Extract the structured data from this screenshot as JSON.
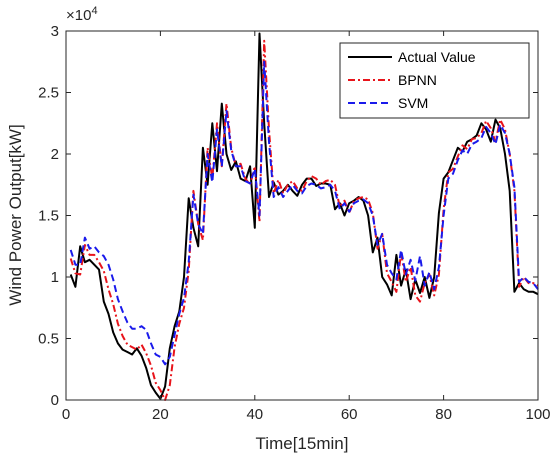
{
  "chart_data": {
    "type": "line",
    "title": "",
    "xlabel": "Time[15min]",
    "ylabel": "Wind Power Output[kW]",
    "y_multiplier_label": "×10",
    "y_multiplier_exponent": "4",
    "xlim": [
      0,
      100
    ],
    "ylim": [
      0,
      30000
    ],
    "x_ticks": [
      0,
      20,
      40,
      60,
      80,
      100
    ],
    "y_ticks": [
      0,
      5000,
      10000,
      15000,
      20000,
      25000,
      30000
    ],
    "y_tick_labels": [
      "0",
      "0.5",
      "1",
      "1.5",
      "2",
      "2.5",
      "3"
    ],
    "grid": false,
    "legend_position": "top-right",
    "series": [
      {
        "name": "Actual Value",
        "color": "#000000",
        "style": "solid",
        "x": [
          1,
          2,
          3,
          4,
          5,
          6,
          7,
          8,
          9,
          10,
          11,
          12,
          13,
          14,
          15,
          16,
          17,
          18,
          19,
          20,
          21,
          22,
          23,
          24,
          25,
          26,
          27,
          28,
          29,
          30,
          31,
          32,
          33,
          34,
          35,
          36,
          37,
          38,
          39,
          40,
          41,
          42,
          43,
          44,
          45,
          46,
          47,
          48,
          49,
          50,
          51,
          52,
          53,
          54,
          55,
          56,
          57,
          58,
          59,
          60,
          61,
          62,
          63,
          64,
          65,
          66,
          67,
          68,
          69,
          70,
          71,
          72,
          73,
          74,
          75,
          76,
          77,
          78,
          79,
          80,
          81,
          82,
          83,
          84,
          85,
          86,
          87,
          88,
          89,
          90,
          91,
          92,
          93,
          94,
          95,
          96,
          97,
          98,
          99,
          100
        ],
        "values": [
          10200,
          9200,
          12500,
          11200,
          11400,
          11000,
          10600,
          8000,
          7000,
          5500,
          4600,
          4100,
          3900,
          3700,
          4200,
          3600,
          2600,
          1200,
          600,
          100,
          1100,
          4200,
          6000,
          7200,
          10000,
          16400,
          14000,
          12500,
          20500,
          17500,
          22500,
          18600,
          24100,
          20000,
          18700,
          19400,
          18000,
          17800,
          19000,
          14000,
          29800,
          22500,
          16500,
          17700,
          16700,
          17000,
          17500,
          17000,
          16600,
          17500,
          18000,
          18000,
          17400,
          17600,
          17600,
          17500,
          15500,
          16000,
          15000,
          16000,
          16200,
          16500,
          16200,
          15000,
          12000,
          13200,
          10000,
          9400,
          8500,
          11800,
          9300,
          10600,
          8200,
          9800,
          8700,
          10000,
          8300,
          10000,
          15200,
          18000,
          18500,
          19500,
          20500,
          20200,
          21000,
          21200,
          21500,
          22500,
          22000,
          21000,
          22800,
          22100,
          20000,
          17000,
          8800,
          9500,
          9000,
          8800,
          8800,
          8600
        ]
      },
      {
        "name": "BPNN",
        "color": "#e8141b",
        "style": "dashdot",
        "x": [
          1,
          2,
          3,
          4,
          5,
          6,
          7,
          8,
          9,
          10,
          11,
          12,
          13,
          14,
          15,
          16,
          17,
          18,
          19,
          20,
          21,
          22,
          23,
          24,
          25,
          26,
          27,
          28,
          29,
          30,
          31,
          32,
          33,
          34,
          35,
          36,
          37,
          38,
          39,
          40,
          41,
          42,
          43,
          44,
          45,
          46,
          47,
          48,
          49,
          50,
          51,
          52,
          53,
          54,
          55,
          56,
          57,
          58,
          59,
          60,
          61,
          62,
          63,
          64,
          65,
          66,
          67,
          68,
          69,
          70,
          71,
          72,
          73,
          74,
          75,
          76,
          77,
          78,
          79,
          80,
          81,
          82,
          83,
          84,
          85,
          86,
          87,
          88,
          89,
          90,
          91,
          92,
          93,
          94,
          95,
          96,
          97,
          98,
          99,
          100
        ],
        "values": [
          11500,
          10300,
          10200,
          12600,
          11800,
          11800,
          11200,
          10500,
          9000,
          7800,
          6200,
          5200,
          4500,
          4300,
          4100,
          4500,
          3800,
          2800,
          1400,
          800,
          0,
          1200,
          4300,
          6200,
          7500,
          10500,
          17000,
          14300,
          13000,
          20500,
          18000,
          22500,
          19000,
          24100,
          20500,
          19000,
          19200,
          18000,
          17500,
          19000,
          14500,
          29200,
          22000,
          16800,
          17900,
          16800,
          17500,
          17800,
          17200,
          17000,
          17800,
          18200,
          18000,
          17500,
          17800,
          17900,
          17500,
          15700,
          16200,
          15200,
          16200,
          16400,
          16500,
          16300,
          15200,
          12300,
          13500,
          10300,
          9600,
          8800,
          12000,
          9600,
          10800,
          8500,
          8000,
          9500,
          10200,
          8500,
          10200,
          15500,
          18500,
          18800,
          19800,
          20700,
          20400,
          21200,
          21300,
          21700,
          22700,
          22100,
          21000,
          22800,
          22000,
          20000,
          17000,
          9200,
          10000,
          9500,
          9500,
          9300
        ]
      },
      {
        "name": "SVM",
        "color": "#1a1aeb",
        "style": "dashed",
        "x": [
          1,
          2,
          3,
          4,
          5,
          6,
          7,
          8,
          9,
          10,
          11,
          12,
          13,
          14,
          15,
          16,
          17,
          18,
          19,
          20,
          21,
          22,
          23,
          24,
          25,
          26,
          27,
          28,
          29,
          30,
          31,
          32,
          33,
          34,
          35,
          36,
          37,
          38,
          39,
          40,
          41,
          42,
          43,
          44,
          45,
          46,
          47,
          48,
          49,
          50,
          51,
          52,
          53,
          54,
          55,
          56,
          57,
          58,
          59,
          60,
          61,
          62,
          63,
          64,
          65,
          66,
          67,
          68,
          69,
          70,
          71,
          72,
          73,
          74,
          75,
          76,
          77,
          78,
          79,
          80,
          81,
          82,
          83,
          84,
          85,
          86,
          87,
          88,
          89,
          90,
          91,
          92,
          93,
          94,
          95,
          96,
          97,
          98,
          99,
          100
        ],
        "values": [
          12200,
          11000,
          11000,
          13200,
          12300,
          12500,
          12000,
          11700,
          11000,
          9800,
          8200,
          7200,
          6300,
          5800,
          5800,
          6000,
          5700,
          4600,
          3700,
          3500,
          2900,
          3500,
          5300,
          7000,
          8300,
          11200,
          16700,
          14300,
          13500,
          20000,
          17700,
          22000,
          19000,
          23500,
          20300,
          19000,
          19000,
          17800,
          17600,
          18800,
          15000,
          27500,
          21000,
          16500,
          17300,
          16500,
          17000,
          17500,
          17000,
          16800,
          17400,
          17600,
          17500,
          17200,
          17300,
          17500,
          17000,
          15500,
          16000,
          15300,
          16000,
          16200,
          16300,
          16000,
          15000,
          12600,
          13500,
          11000,
          10300,
          9800,
          12200,
          10200,
          11400,
          9700,
          11700,
          9300,
          10400,
          9000,
          10800,
          15000,
          18000,
          18400,
          19500,
          20300,
          20000,
          20800,
          21000,
          21300,
          22200,
          21700,
          20800,
          22400,
          21700,
          20000,
          17300,
          9600,
          10000,
          9600,
          9500,
          9000
        ]
      }
    ]
  }
}
